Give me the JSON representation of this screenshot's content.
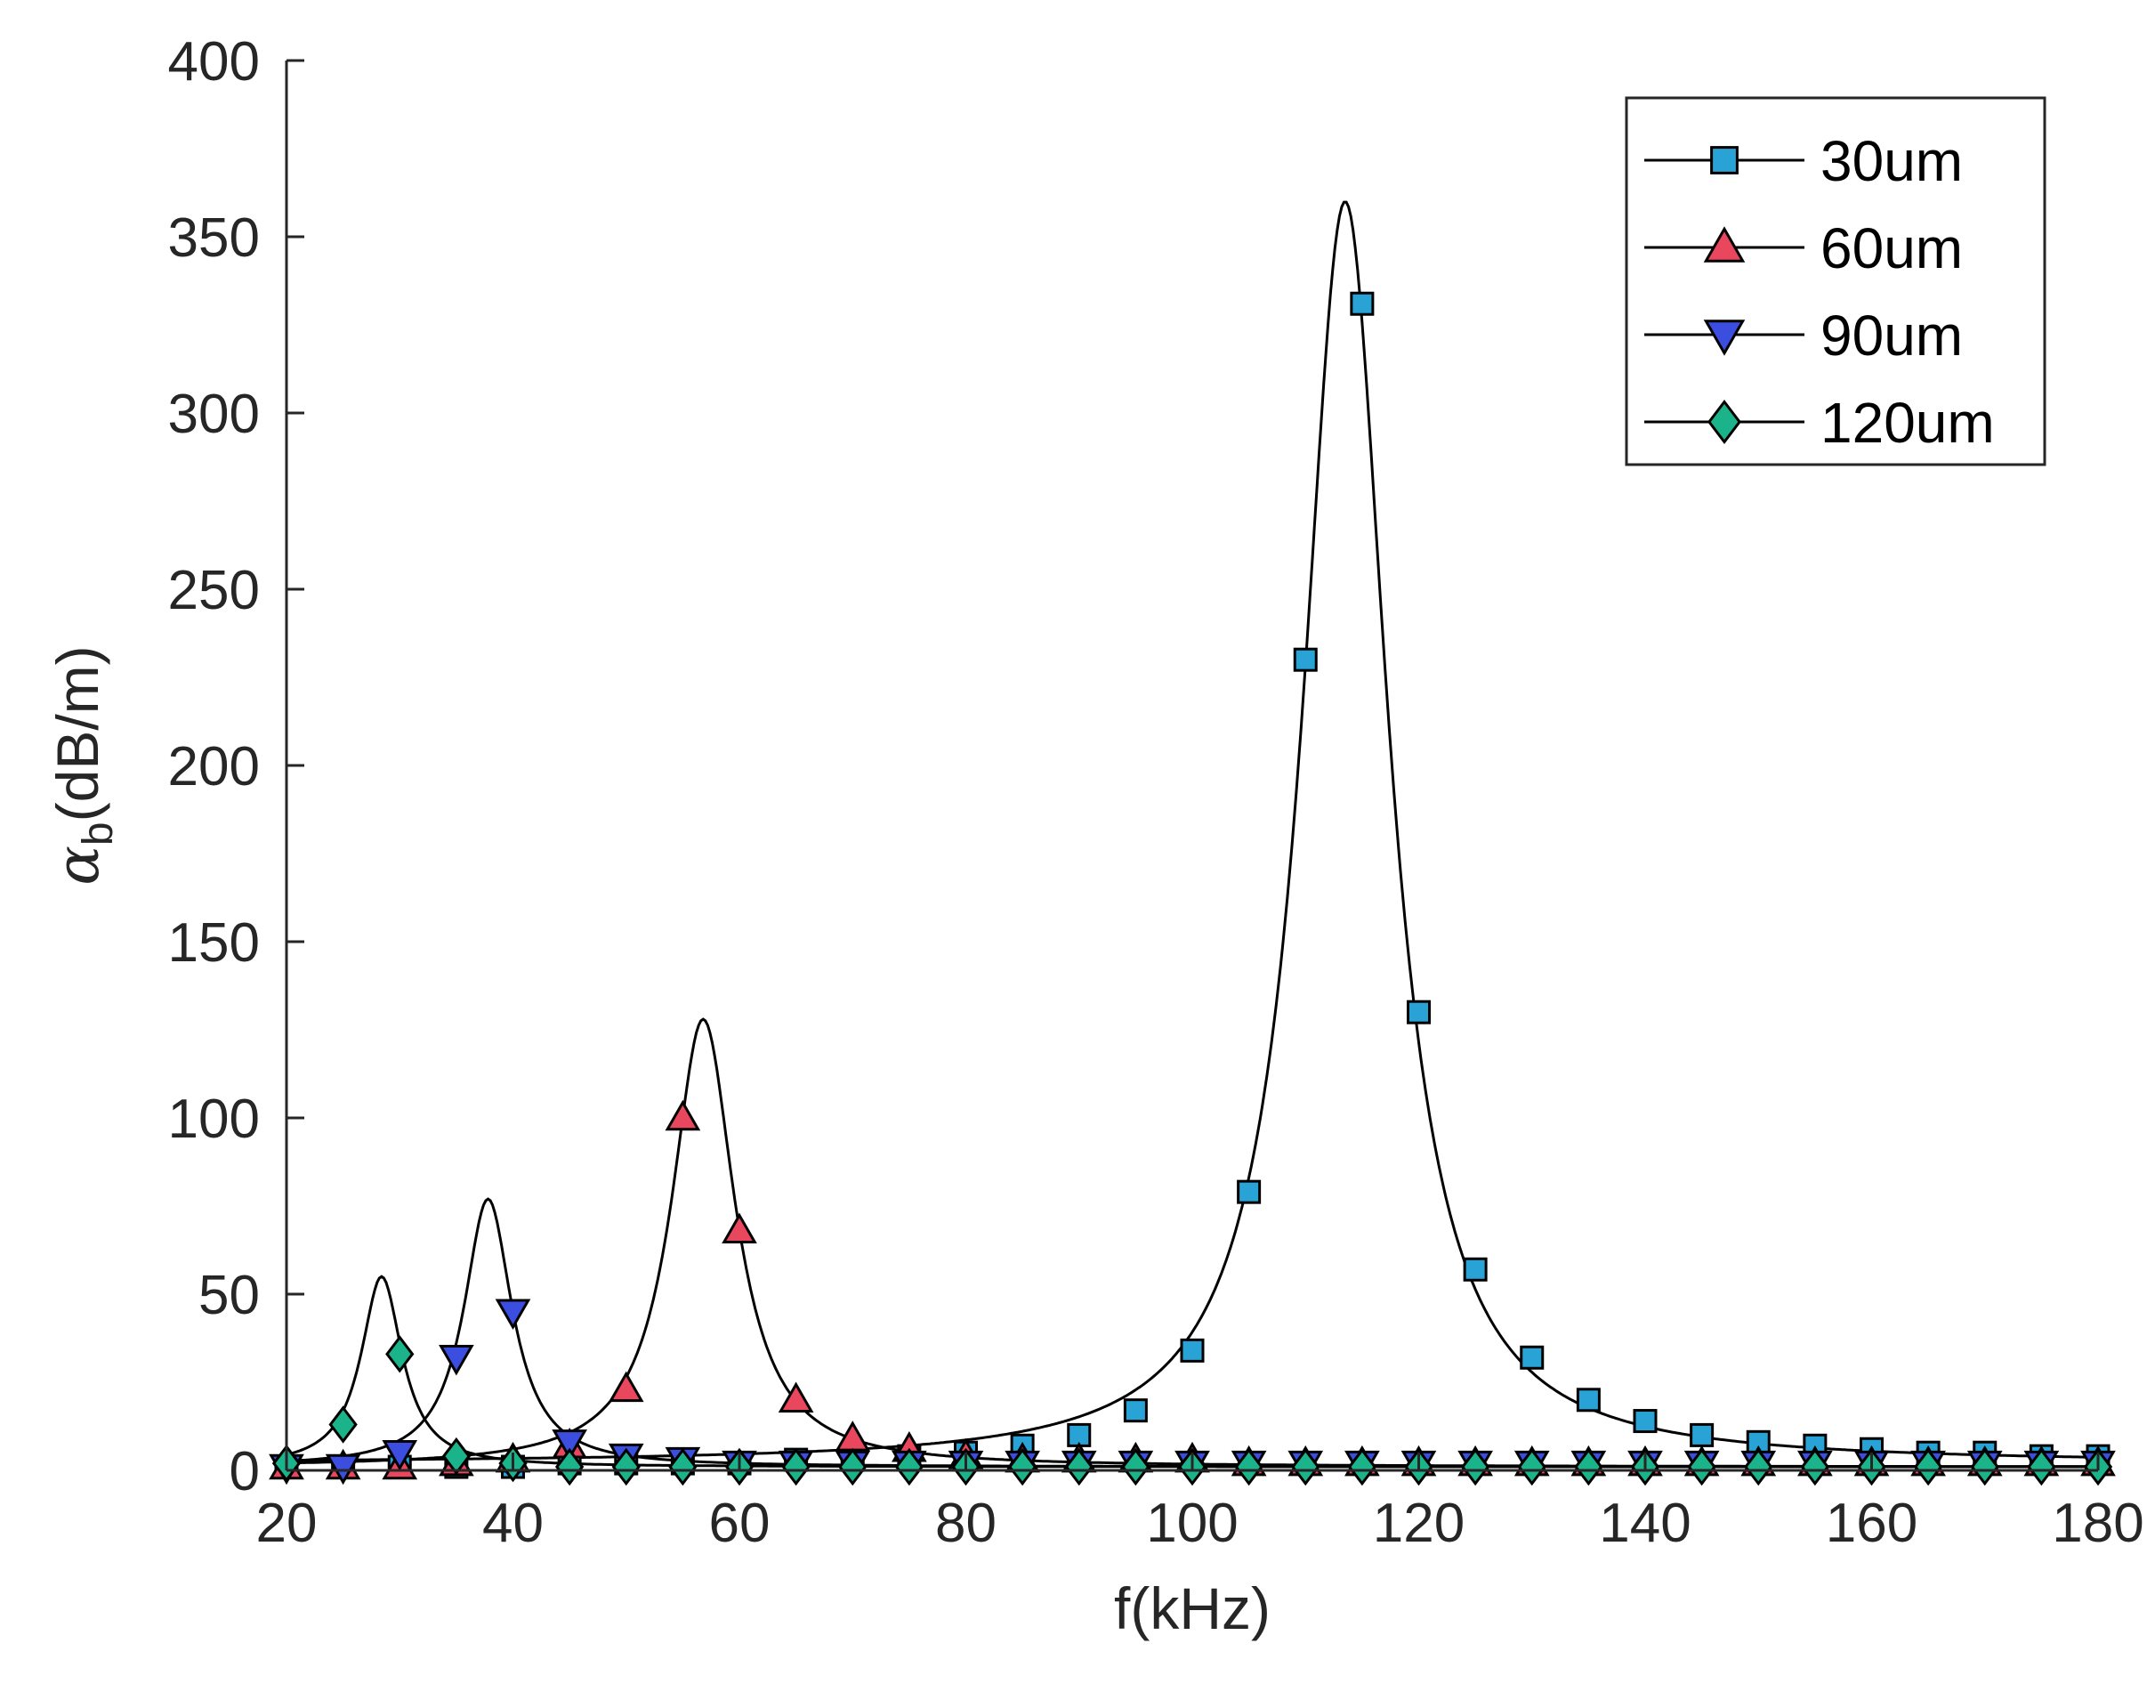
{
  "chart_data": {
    "type": "line",
    "title": "",
    "xlabel": "f(kHz)",
    "ylabel": {
      "symbol": "α",
      "subscript": "b",
      "unit": "(dB/m)"
    },
    "xlim": [
      20,
      180
    ],
    "ylim": [
      0,
      400
    ],
    "x_ticks": [
      20,
      40,
      60,
      80,
      100,
      120,
      140,
      160,
      180
    ],
    "y_ticks": [
      0,
      50,
      100,
      150,
      200,
      250,
      300,
      350,
      400
    ],
    "grid": false,
    "legend_position": "top-right",
    "series": [
      {
        "name": "30um",
        "marker": "square",
        "color": "#29a3d6",
        "line_color": "#000000",
        "resonance": {
          "f0": 113.5,
          "peak": 360,
          "width": 4.6,
          "baseline": 2
        },
        "marker_x": [
          20,
          25,
          30,
          35,
          40,
          45,
          50,
          55,
          60,
          65,
          70,
          75,
          80,
          85,
          90,
          95,
          100,
          105,
          110,
          115,
          120,
          125,
          130,
          135,
          140,
          145,
          150,
          155,
          160,
          165,
          170,
          175,
          180
        ],
        "marker_y": [
          1,
          1,
          1,
          1,
          1,
          2,
          2,
          2,
          2,
          3,
          3,
          4,
          5,
          7,
          10,
          17,
          34,
          79,
          230,
          331,
          130,
          57,
          32,
          20,
          14,
          10,
          8,
          7,
          6,
          5,
          5,
          4,
          4
        ]
      },
      {
        "name": "60um",
        "marker": "triangle-up",
        "color": "#e8475e",
        "line_color": "#000000",
        "resonance": {
          "f0": 56.8,
          "peak": 128,
          "width": 3.4,
          "baseline": 1
        },
        "marker_x": [
          20,
          25,
          30,
          35,
          40,
          45,
          50,
          55,
          60,
          65,
          70,
          75,
          80,
          85,
          90,
          95,
          100,
          105,
          110,
          115,
          120,
          125,
          130,
          135,
          140,
          145,
          150,
          155,
          160,
          165,
          170,
          175,
          180
        ],
        "marker_y": [
          1,
          1,
          1,
          2,
          3,
          7,
          23,
          100,
          68,
          20,
          9,
          6,
          4,
          3,
          3,
          3,
          3,
          2,
          2,
          2,
          2,
          2,
          2,
          2,
          2,
          2,
          2,
          2,
          2,
          2,
          2,
          2,
          2
        ]
      },
      {
        "name": "90um",
        "marker": "triangle-down",
        "color": "#3b4ee0",
        "line_color": "#000000",
        "resonance": {
          "f0": 37.8,
          "peak": 77,
          "width": 2.6,
          "baseline": 1
        },
        "marker_x": [
          20,
          25,
          30,
          35,
          40,
          45,
          50,
          55,
          60,
          65,
          70,
          75,
          80,
          85,
          90,
          95,
          100,
          105,
          110,
          115,
          120,
          125,
          130,
          135,
          140,
          145,
          150,
          155,
          160,
          165,
          170,
          175,
          180
        ],
        "marker_y": [
          1,
          1,
          5,
          32,
          45,
          8,
          4,
          3,
          2,
          2,
          2,
          2,
          2,
          2,
          2,
          2,
          2,
          2,
          2,
          2,
          2,
          2,
          2,
          2,
          2,
          2,
          2,
          2,
          2,
          2,
          2,
          2,
          2
        ]
      },
      {
        "name": "120um",
        "marker": "diamond",
        "color": "#1bb38a",
        "line_color": "#000000",
        "resonance": {
          "f0": 28.4,
          "peak": 55,
          "width": 2.2,
          "baseline": 1
        },
        "marker_x": [
          20,
          25,
          30,
          35,
          40,
          45,
          50,
          55,
          60,
          65,
          70,
          75,
          80,
          85,
          90,
          95,
          100,
          105,
          110,
          115,
          120,
          125,
          130,
          135,
          140,
          145,
          150,
          155,
          160,
          165,
          170,
          175,
          180
        ],
        "marker_y": [
          2,
          13,
          33,
          4,
          2,
          1,
          1,
          1,
          1,
          1,
          1,
          1,
          1,
          1,
          1,
          1,
          1,
          1,
          1,
          1,
          1,
          1,
          1,
          1,
          1,
          1,
          1,
          1,
          1,
          1,
          1,
          1,
          1
        ]
      }
    ]
  }
}
